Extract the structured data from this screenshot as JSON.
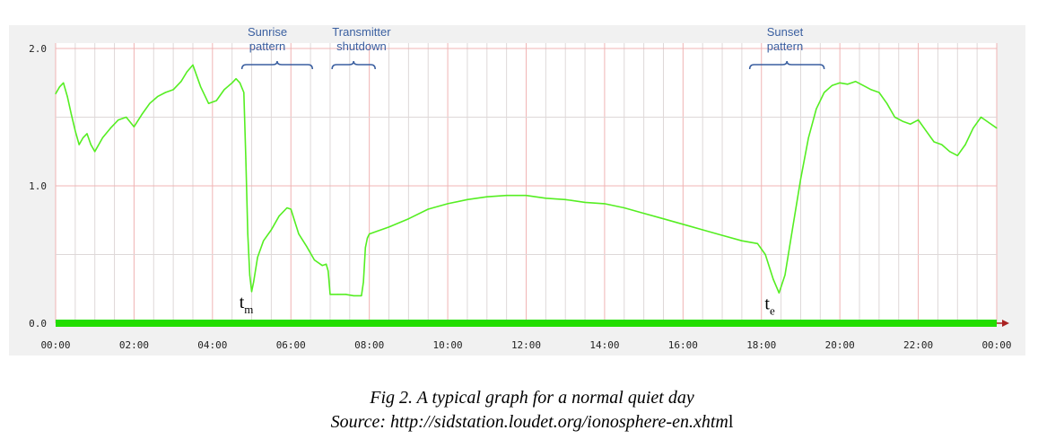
{
  "chart_data": {
    "type": "line",
    "title": "",
    "xlabel": "",
    "ylabel": "",
    "x_unit": "hours",
    "xlim": [
      0,
      24
    ],
    "ylim": [
      0,
      2.0
    ],
    "grid": true,
    "x_ticks": [
      0,
      2,
      4,
      6,
      8,
      10,
      12,
      14,
      16,
      18,
      20,
      22,
      24
    ],
    "x_tick_labels": [
      "00:00",
      "02:00",
      "04:00",
      "06:00",
      "08:00",
      "10:00",
      "12:00",
      "14:00",
      "16:00",
      "18:00",
      "20:00",
      "22:00",
      "00:00"
    ],
    "y_ticks": [
      0,
      1,
      2
    ],
    "y_tick_labels": [
      "0.0",
      "1.0",
      "2.0"
    ],
    "colors": {
      "line": "#55ee22",
      "baseline_bar": "#22dd00",
      "grid_major": "#f0b4b4",
      "grid_minor": "#ded8d8",
      "annotation": "#3a5fa0",
      "axis_arrow": "#aa2222"
    },
    "series": [
      {
        "x": [
          0.0,
          0.1,
          0.2,
          0.3,
          0.4,
          0.5,
          0.6,
          0.7,
          0.8,
          0.9,
          1.0,
          1.2,
          1.4,
          1.6,
          1.8,
          2.0,
          2.2,
          2.4,
          2.6,
          2.8,
          3.0,
          3.2,
          3.35,
          3.5,
          3.7,
          3.9,
          4.1,
          4.3,
          4.5,
          4.6,
          4.7,
          4.8,
          4.85,
          4.9,
          4.95,
          5.0,
          5.05,
          5.15,
          5.3,
          5.5,
          5.7,
          5.9,
          6.0,
          6.1,
          6.2,
          6.4,
          6.6,
          6.8,
          6.9,
          6.95,
          7.0,
          7.2,
          7.4,
          7.6,
          7.8,
          7.85,
          7.9,
          7.95,
          8.0,
          8.2,
          8.5,
          9.0,
          9.5,
          10.0,
          10.5,
          11.0,
          11.5,
          12.0,
          12.5,
          13.0,
          13.5,
          14.0,
          14.5,
          15.0,
          15.5,
          16.0,
          16.5,
          17.0,
          17.5,
          17.9,
          18.1,
          18.3,
          18.45,
          18.6,
          18.8,
          19.0,
          19.2,
          19.4,
          19.6,
          19.8,
          20.0,
          20.2,
          20.4,
          20.6,
          20.8,
          21.0,
          21.2,
          21.4,
          21.6,
          21.8,
          22.0,
          22.2,
          22.4,
          22.6,
          22.8,
          23.0,
          23.2,
          23.4,
          23.6,
          23.8,
          24.0
        ],
        "y": [
          1.67,
          1.72,
          1.75,
          1.65,
          1.52,
          1.4,
          1.3,
          1.35,
          1.38,
          1.3,
          1.25,
          1.35,
          1.42,
          1.48,
          1.5,
          1.43,
          1.52,
          1.6,
          1.65,
          1.68,
          1.7,
          1.76,
          1.83,
          1.88,
          1.72,
          1.6,
          1.62,
          1.7,
          1.75,
          1.78,
          1.75,
          1.68,
          1.2,
          0.65,
          0.35,
          0.23,
          0.3,
          0.48,
          0.6,
          0.68,
          0.78,
          0.84,
          0.83,
          0.74,
          0.65,
          0.56,
          0.46,
          0.42,
          0.43,
          0.38,
          0.21,
          0.21,
          0.21,
          0.2,
          0.2,
          0.3,
          0.55,
          0.62,
          0.65,
          0.67,
          0.7,
          0.76,
          0.83,
          0.87,
          0.9,
          0.92,
          0.93,
          0.93,
          0.91,
          0.9,
          0.88,
          0.87,
          0.84,
          0.8,
          0.76,
          0.72,
          0.68,
          0.64,
          0.6,
          0.58,
          0.5,
          0.32,
          0.22,
          0.35,
          0.7,
          1.05,
          1.35,
          1.56,
          1.68,
          1.73,
          1.75,
          1.74,
          1.76,
          1.73,
          1.7,
          1.68,
          1.6,
          1.5,
          1.47,
          1.45,
          1.48,
          1.4,
          1.32,
          1.3,
          1.25,
          1.22,
          1.3,
          1.42,
          1.5,
          1.46,
          1.42
        ]
      }
    ],
    "annotations": [
      {
        "lines": [
          "Sunrise",
          "pattern"
        ],
        "x": 5.4,
        "bracket": [
          4.75,
          6.55
        ]
      },
      {
        "lines": [
          "Transmitter",
          "shutdown"
        ],
        "x": 7.8,
        "bracket": [
          7.05,
          8.15
        ]
      },
      {
        "lines": [
          "Sunset",
          "pattern"
        ],
        "x": 18.6,
        "bracket": [
          17.7,
          19.6
        ]
      }
    ],
    "markers": [
      {
        "main": "t",
        "sub": "m",
        "x": 5.05,
        "y": 0.23
      },
      {
        "main": "t",
        "sub": "e",
        "x": 18.45,
        "y": 0.22
      }
    ]
  },
  "caption": {
    "line1": "Fig 2. A typical graph for a normal quiet day",
    "line2": "Source: http://sidstation.loudet.org/ionosphere-en.xhtm",
    "line2_tail": "l"
  }
}
